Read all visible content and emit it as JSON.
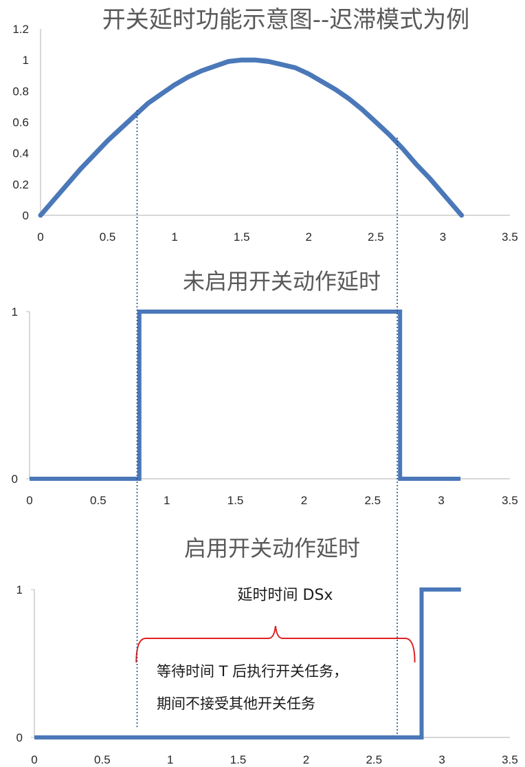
{
  "chart_data": [
    {
      "type": "line",
      "title": "开关延时功能示意图--迟滞模式为例",
      "xlabel": "",
      "ylabel": "",
      "xlim": [
        0,
        3.5
      ],
      "ylim": [
        0,
        1.2
      ],
      "x_ticks": [
        "0",
        "0.5",
        "1",
        "1.5",
        "2",
        "2.5",
        "3",
        "3.5"
      ],
      "y_ticks": [
        "0",
        "0.2",
        "0.4",
        "0.6",
        "0.8",
        "1",
        "1.2"
      ],
      "series": [
        {
          "color": "#4a78b8",
          "x": [
            0,
            0.1,
            0.2,
            0.3,
            0.4,
            0.5,
            0.6,
            0.7,
            0.8,
            0.9,
            1.0,
            1.1,
            1.2,
            1.3,
            1.4,
            1.5,
            1.6,
            1.7,
            1.8,
            1.9,
            2.0,
            2.1,
            2.2,
            2.3,
            2.4,
            2.5,
            2.6,
            2.7,
            2.8,
            2.9,
            3.0,
            3.1,
            3.14
          ],
          "y": [
            0,
            0.1,
            0.2,
            0.3,
            0.39,
            0.48,
            0.56,
            0.64,
            0.72,
            0.78,
            0.84,
            0.89,
            0.93,
            0.96,
            0.99,
            1.0,
            1.0,
            0.99,
            0.97,
            0.95,
            0.91,
            0.86,
            0.81,
            0.75,
            0.68,
            0.6,
            0.52,
            0.43,
            0.33,
            0.24,
            0.14,
            0.04,
            0
          ]
        }
      ],
      "grid": false
    },
    {
      "type": "line",
      "title": "未启用开关动作延时",
      "xlabel": "",
      "ylabel": "",
      "xlim": [
        0,
        3.5
      ],
      "ylim": [
        0,
        1
      ],
      "x_ticks": [
        "0",
        "0.5",
        "1",
        "1.5",
        "2",
        "2.5",
        "3",
        "3.5"
      ],
      "y_ticks": [
        "0",
        "1"
      ],
      "series": [
        {
          "color": "#4a78b8",
          "x": [
            0,
            0.8,
            0.8,
            2.7,
            2.7,
            3.14
          ],
          "y": [
            0,
            0,
            1,
            1,
            0,
            0
          ]
        }
      ],
      "grid": false
    },
    {
      "type": "line",
      "title": "启用开关动作延时",
      "xlabel": "",
      "ylabel": "",
      "xlim": [
        0,
        3.5
      ],
      "ylim": [
        0,
        1
      ],
      "x_ticks": [
        "0",
        "0.5",
        "1",
        "1.5",
        "2",
        "2.5",
        "3",
        "3.5"
      ],
      "y_ticks": [
        "0",
        "1"
      ],
      "series": [
        {
          "color": "#4a78b8",
          "x": [
            0,
            2.85,
            2.85,
            3.14
          ],
          "y": [
            0,
            0,
            1,
            1
          ]
        }
      ],
      "annotations": {
        "delay_label": "延时时间  DSx",
        "wait_line1": "等待时间 T 后执行开关任务，",
        "wait_line2": "期间不接受其他开关任务",
        "brace_color": "#e02020",
        "brace_x": [
          0.75,
          2.8
        ],
        "brace_y": 0.67
      },
      "grid": false
    }
  ],
  "markers": {
    "dotted_color": "#1f4e8c",
    "dotted_x": [
      0.72,
      2.66
    ]
  }
}
